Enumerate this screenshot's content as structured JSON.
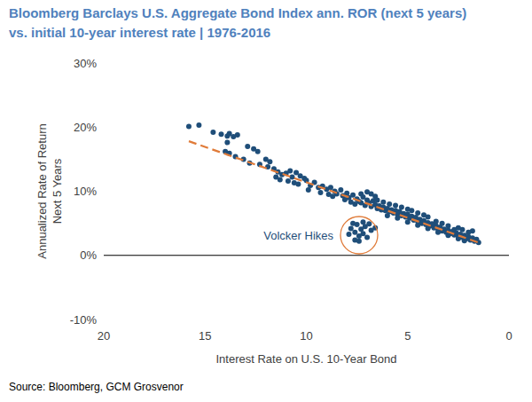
{
  "chart_data": {
    "type": "scatter",
    "title": "Bloomberg Barclays U.S. Aggregate Bond Index ann. ROR (next 5 years)",
    "subtitle": "vs. initial 10-year interest rate | 1976-2016",
    "xlabel": "Interest Rate on U.S. 10-Year Bond",
    "ylabel": [
      "Annualized Rate of Return",
      "Next 5 Years"
    ],
    "annotations": [
      "Volcker Hikes"
    ],
    "source": "Source: Bloomberg, GCM Grosvenor",
    "xlim": [
      20,
      0
    ],
    "xticks": [
      20,
      15,
      10,
      5,
      0
    ],
    "ylim": [
      -10,
      30
    ],
    "yticks": [
      {
        "value": -10,
        "label": "-10%"
      },
      {
        "value": 0,
        "label": "0%"
      },
      {
        "value": 10,
        "label": "10%"
      },
      {
        "value": 20,
        "label": "20%"
      },
      {
        "value": 30,
        "label": "30%"
      }
    ],
    "grid": false,
    "series": [
      {
        "type": "scatter",
        "marker": "circle",
        "color": "#1f4e79",
        "x": [
          15.8,
          15.3,
          14.6,
          14.2,
          13.9,
          13.8,
          13.6,
          13.4,
          13.9,
          14.0,
          13.8,
          13.5,
          12.9,
          12.6,
          12.4,
          13.1,
          12.8,
          12.3,
          12.0,
          11.8,
          11.9,
          11.6,
          11.4,
          11.2,
          11.0,
          10.8,
          10.5,
          10.7,
          10.3,
          10.1,
          11.5,
          11.3,
          10.9,
          10.6,
          10.4,
          10.0,
          9.8,
          9.6,
          9.4,
          9.2,
          9.0,
          8.8,
          8.6,
          8.5,
          8.3,
          8.2,
          8.0,
          7.9,
          7.7,
          7.5,
          7.3,
          7.2,
          7.0,
          8.9,
          8.7,
          9.3,
          9.9,
          8.1,
          7.8,
          7.6,
          7.4,
          7.1,
          6.9,
          6.8,
          6.7,
          6.6,
          6.5,
          6.4,
          6.3,
          6.2,
          6.1,
          6.0,
          5.9,
          5.8,
          5.7,
          5.6,
          5.5,
          5.4,
          5.3,
          5.2,
          5.1,
          5.0,
          4.9,
          4.8,
          4.7,
          4.6,
          4.5,
          4.4,
          4.3,
          4.2,
          4.1,
          4.0,
          3.9,
          3.8,
          3.7,
          3.6,
          3.5,
          3.4,
          3.3,
          3.2,
          3.1,
          3.0,
          2.9,
          2.8,
          2.7,
          2.6,
          2.5,
          2.4,
          2.3,
          2.2,
          2.1,
          2.0,
          1.9,
          1.8,
          1.7,
          1.6,
          1.5,
          1.8,
          2.0,
          2.3,
          2.5,
          2.7,
          3.0,
          3.3,
          3.6,
          4.0,
          4.2,
          4.5,
          4.8,
          5.0,
          5.3,
          5.6,
          5.9,
          6.2,
          6.5,
          6.0,
          5.5,
          5.0,
          4.5,
          4.0,
          3.5,
          3.0,
          2.5,
          2.2,
          6.8,
          7.0,
          6.6,
          7.3,
          7.8,
          7.6,
          7.5,
          7.4,
          7.3,
          7.2,
          7.1,
          7.0,
          7.6,
          7.4,
          6.8,
          6.6,
          7.7,
          7.2,
          6.9,
          7.9
        ],
        "values": [
          20.1,
          20.3,
          19.2,
          18.9,
          18.6,
          19.0,
          18.5,
          18.8,
          17.6,
          16.2,
          15.9,
          15.4,
          17.0,
          16.6,
          16.2,
          15.0,
          14.4,
          14.2,
          15.0,
          14.6,
          13.8,
          13.5,
          13.0,
          12.6,
          12.8,
          13.2,
          12.9,
          12.2,
          12.4,
          12.0,
          12.2,
          11.8,
          11.6,
          11.3,
          11.1,
          11.7,
          10.9,
          11.4,
          10.6,
          10.8,
          10.3,
          10.6,
          10.0,
          9.6,
          10.2,
          9.3,
          9.7,
          9.0,
          9.4,
          8.8,
          9.6,
          9.1,
          8.6,
          9.5,
          9.2,
          9.8,
          10.2,
          8.7,
          8.3,
          8.0,
          8.4,
          7.8,
          8.2,
          7.6,
          8.5,
          7.9,
          7.3,
          7.7,
          7.1,
          7.5,
          7.0,
          7.3,
          6.8,
          7.1,
          6.6,
          7.0,
          6.4,
          6.8,
          6.2,
          6.5,
          6.0,
          6.4,
          5.8,
          6.1,
          5.5,
          5.9,
          5.3,
          5.6,
          5.0,
          5.4,
          4.8,
          5.1,
          4.6,
          4.9,
          4.3,
          4.6,
          4.1,
          4.4,
          3.8,
          4.1,
          3.6,
          3.9,
          3.4,
          3.7,
          3.2,
          3.5,
          3.0,
          3.3,
          2.8,
          3.1,
          2.6,
          2.9,
          2.4,
          2.7,
          2.2,
          2.5,
          2.0,
          3.8,
          3.6,
          4.0,
          4.3,
          4.0,
          4.6,
          5.0,
          5.3,
          6.0,
          6.3,
          6.6,
          7.0,
          7.2,
          7.5,
          7.8,
          8.0,
          8.3,
          8.6,
          6.2,
          5.8,
          5.2,
          4.7,
          4.2,
          3.6,
          3.1,
          2.6,
          2.3,
          9.6,
          9.9,
          9.2,
          8.2,
          4.2,
          3.6,
          4.8,
          3.0,
          4.1,
          3.4,
          4.5,
          2.8,
          2.4,
          2.2,
          3.9,
          4.3,
          5.0,
          5.2,
          4.9,
          3.3
        ]
      },
      {
        "type": "line",
        "line_style": "dashed",
        "color": "#e07b39",
        "x": [
          15.8,
          1.5
        ],
        "values": [
          17.8,
          2.0
        ]
      }
    ]
  }
}
